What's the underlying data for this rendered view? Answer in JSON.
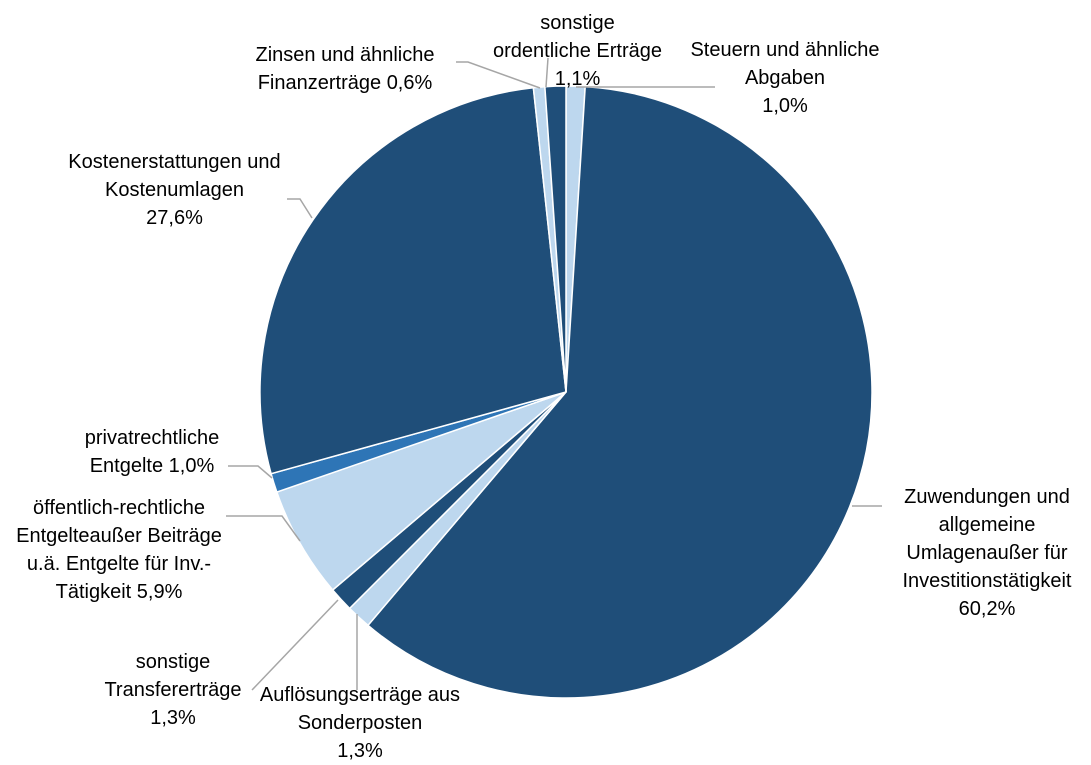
{
  "chart_data": {
    "type": "pie",
    "categories": [
      "Steuern und ähnliche Abgaben",
      "Zuwendungen und allgemeine Umlagenaußer für Investitionstätigkeit",
      "Auflösungserträge aus Sonderposten",
      "sonstige Transfererträge",
      "öffentlich-rechtliche Entgelteaußer Beiträge u.ä. Entgelte für Inv.-Tätigkeit",
      "privatrechtliche Entgelte",
      "Kostenerstattungen und Kostenumlagen",
      "Zinsen und ähnliche Finanzerträge",
      "sonstige ordentliche Erträge"
    ],
    "values": [
      1.0,
      60.2,
      1.3,
      1.3,
      5.9,
      1.0,
      27.6,
      0.6,
      1.1
    ],
    "value_labels": [
      "1,0%",
      "60,2%",
      "1,3%",
      "1,3%",
      "5,9%",
      "1,0%",
      "27,6%",
      "0,6%",
      "1,1%"
    ],
    "colors": [
      "#bdd7ee",
      "#1f4e79",
      "#bdd7ee",
      "#1f4e79",
      "#bdd7ee",
      "#2e75b6",
      "#1f4e79",
      "#bdd7ee",
      "#1f4e79"
    ]
  }
}
